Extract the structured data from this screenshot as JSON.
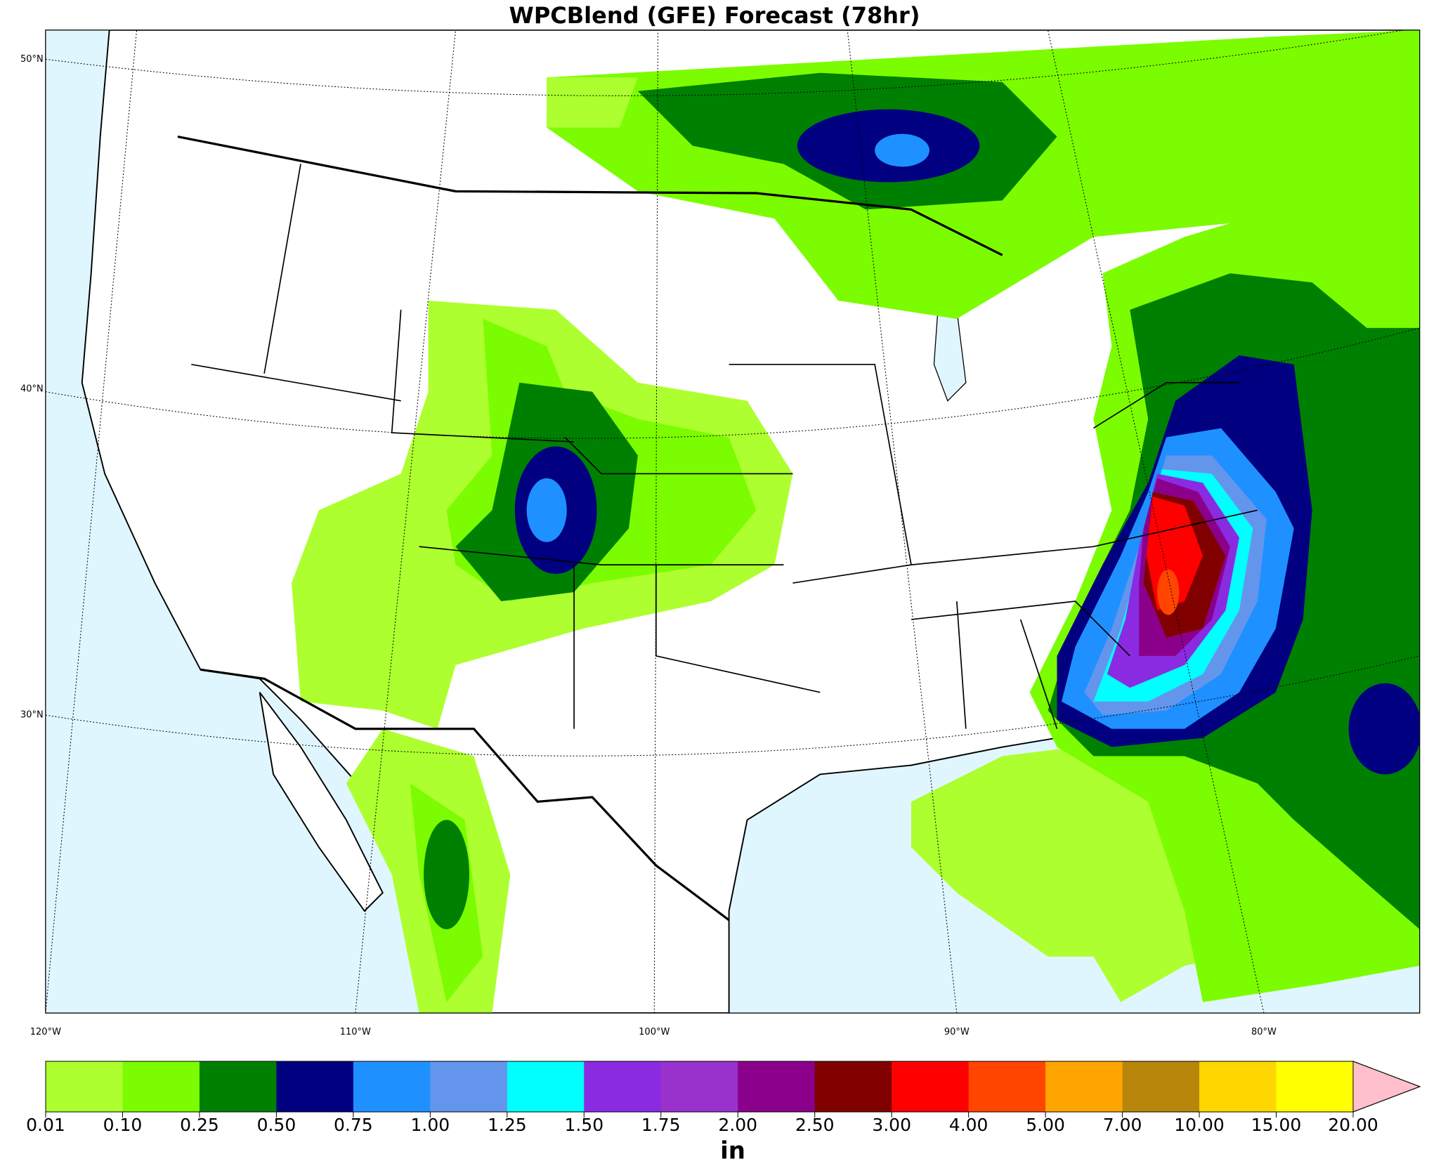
{
  "title": "WPCBlend (GFE) Forecast (78hr)",
  "map": {
    "lat_labels": [
      "50°N",
      "40°N",
      "30°N"
    ],
    "lon_labels": [
      "120°W",
      "110°W",
      "100°W",
      "90°W",
      "80°W"
    ]
  },
  "colorbar": {
    "label": "in",
    "bounds": [
      0.01,
      {
        "value": 0.1,
        "label": "0.10"
      },
      {
        "value": 0.25,
        "label": "0.25"
      },
      {
        "value": 0.5,
        "label": "0.50"
      },
      {
        "value": 0.75,
        "label": "0.75"
      },
      {
        "value": 1,
        "label": "1.00"
      },
      {
        "value": 1.25,
        "label": "1.25"
      },
      {
        "value": 1.5,
        "label": "1.50"
      },
      {
        "value": 1.75,
        "label": "1.75"
      },
      {
        "value": 2,
        "label": "2.00"
      },
      {
        "value": 2.5,
        "label": "2.50"
      },
      {
        "value": 3,
        "label": "3.00"
      },
      {
        "value": 4,
        "label": "4.00"
      },
      {
        "value": 5,
        "label": "5.00"
      },
      {
        "value": 7,
        "label": "7.00"
      },
      {
        "value": 10,
        "label": "10.00"
      },
      {
        "value": 15,
        "label": "15.00"
      },
      {
        "value": 20,
        "label": "20.00"
      }
    ],
    "colors": [
      "#adff2f",
      "#7cfc00",
      "#008000",
      "#000080",
      "#1e90ff",
      "#6495ed",
      "#00ffff",
      "#8a2be2",
      "#9932cc",
      "#8b008b",
      "#800000",
      "#ff0000",
      "#ff4500",
      "#ffa500",
      "#b8860b",
      "#ffd700",
      "#ffff00"
    ],
    "extend_color": "#ffc0cb"
  }
}
